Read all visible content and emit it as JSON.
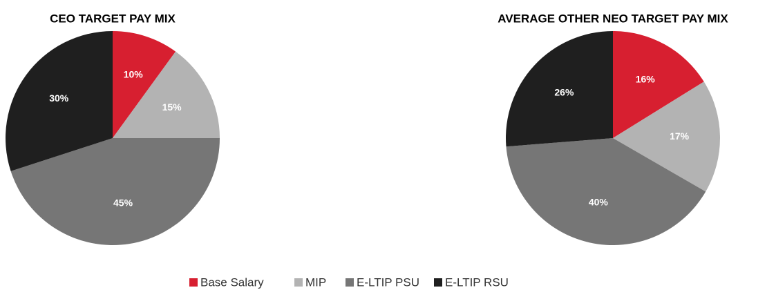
{
  "chart_data": [
    {
      "type": "pie",
      "title": "CEO TARGET PAY MIX",
      "categories": [
        "Base Salary",
        "MIP",
        "E-LTIP PSU",
        "E-LTIP RSU"
      ],
      "values": [
        10,
        15,
        45,
        30
      ],
      "value_labels": [
        "10%",
        "15%",
        "45%",
        "30%"
      ],
      "colors": [
        "#d71f30",
        "#b3b3b3",
        "#767676",
        "#1f1f1f"
      ]
    },
    {
      "type": "pie",
      "title": "AVERAGE OTHER NEO TARGET PAY MIX",
      "categories": [
        "Base Salary",
        "MIP",
        "E-LTIP PSU",
        "E-LTIP RSU"
      ],
      "values": [
        16,
        17,
        40,
        26
      ],
      "value_labels": [
        "16%",
        "17%",
        "40%",
        "26%"
      ],
      "colors": [
        "#d71f30",
        "#b3b3b3",
        "#767676",
        "#1f1f1f"
      ]
    }
  ]
}
